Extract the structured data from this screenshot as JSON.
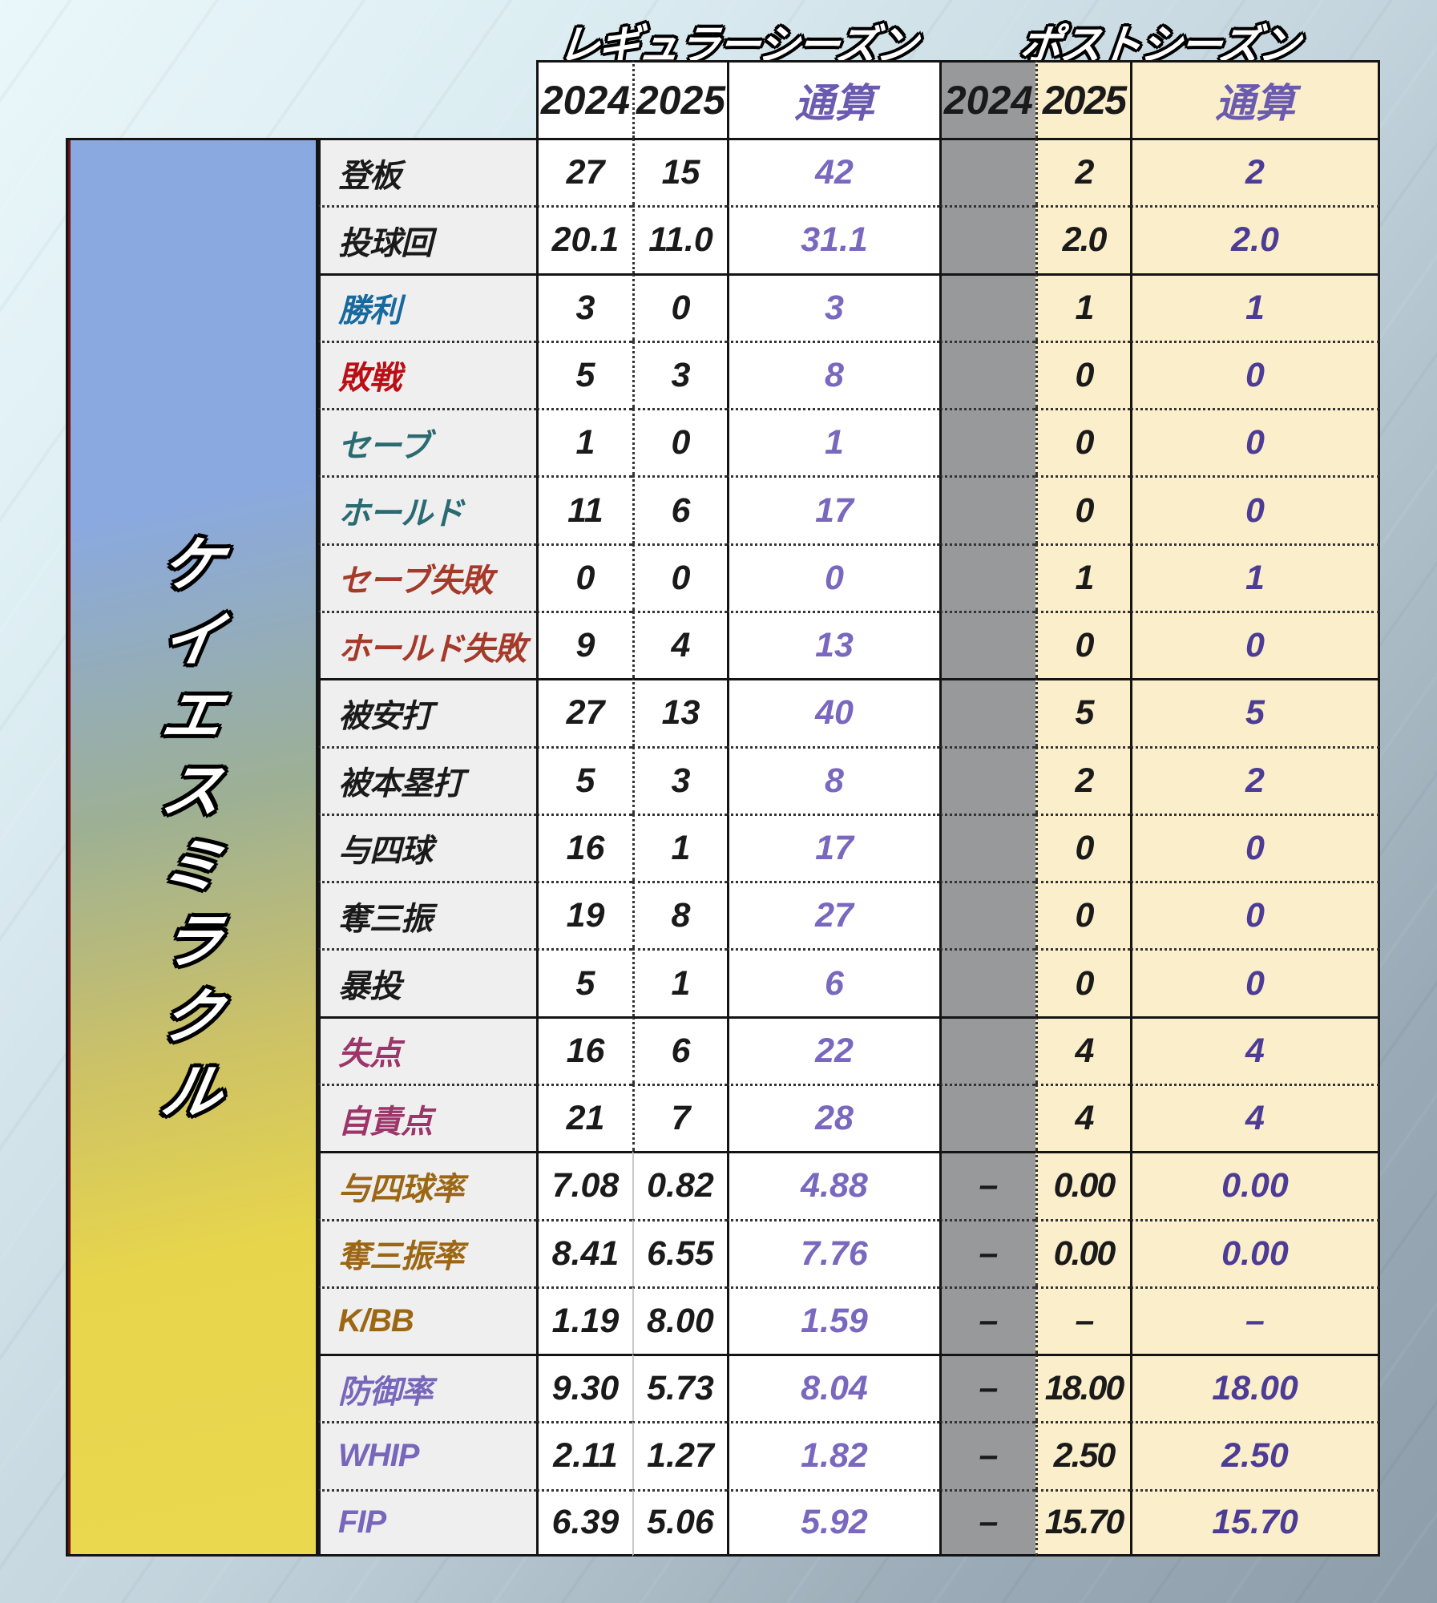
{
  "name_plate": {
    "name": "ケイエスミラクル"
  },
  "header": {
    "y2024": "2024",
    "y2025": "2025",
    "total": "通算"
  },
  "colors": {
    "regular_total_purple": "#7a68bf",
    "post_total_purple": "#4c3c96",
    "header_total_purple": "#6b5bb0",
    "cream_column": "#fbeecb",
    "gray_column": "#98999b",
    "label_column_bg": "#efefef",
    "plate_blue": "#8aa9e1",
    "plate_yellow": "#e9d74b",
    "label_blue": "#17699e",
    "label_red": "#bb0e15",
    "label_teal": "#2a6b72",
    "label_brick": "#a53a2a",
    "label_plum": "#9c3569",
    "label_brown": "#9c6714",
    "label_purple": "#7767bb"
  },
  "chart_data": {
    "type": "table",
    "sections": [
      {
        "name": "レギュラーシーズン",
        "columns": [
          "2024",
          "2025",
          "通算"
        ]
      },
      {
        "name": "ポストシーズン",
        "columns": [
          "2024",
          "2025",
          "通算"
        ]
      }
    ],
    "rows": [
      {
        "label": "登板",
        "color": "black",
        "group_start": false,
        "rate": false,
        "reg": [
          "27",
          "15",
          "42"
        ],
        "post": [
          "",
          "2",
          "2"
        ]
      },
      {
        "label": "投球回",
        "color": "black",
        "group_start": false,
        "rate": false,
        "reg": [
          "20.1",
          "11.0",
          "31.1"
        ],
        "post": [
          "",
          "2.0",
          "2.0"
        ]
      },
      {
        "label": "勝利",
        "color": "blue",
        "group_start": true,
        "rate": false,
        "reg": [
          "3",
          "0",
          "3"
        ],
        "post": [
          "",
          "1",
          "1"
        ]
      },
      {
        "label": "敗戦",
        "color": "red",
        "group_start": false,
        "rate": false,
        "reg": [
          "5",
          "3",
          "8"
        ],
        "post": [
          "",
          "0",
          "0"
        ]
      },
      {
        "label": "セーブ",
        "color": "teal",
        "group_start": false,
        "rate": false,
        "reg": [
          "1",
          "0",
          "1"
        ],
        "post": [
          "",
          "0",
          "0"
        ]
      },
      {
        "label": "ホールド",
        "color": "teal",
        "group_start": false,
        "rate": false,
        "reg": [
          "11",
          "6",
          "17"
        ],
        "post": [
          "",
          "0",
          "0"
        ]
      },
      {
        "label": "セーブ失敗",
        "color": "brick",
        "group_start": false,
        "rate": false,
        "reg": [
          "0",
          "0",
          "0"
        ],
        "post": [
          "",
          "1",
          "1"
        ]
      },
      {
        "label": "ホールド失敗",
        "color": "brick",
        "group_start": false,
        "rate": false,
        "reg": [
          "9",
          "4",
          "13"
        ],
        "post": [
          "",
          "0",
          "0"
        ]
      },
      {
        "label": "被安打",
        "color": "black",
        "group_start": true,
        "rate": false,
        "reg": [
          "27",
          "13",
          "40"
        ],
        "post": [
          "",
          "5",
          "5"
        ]
      },
      {
        "label": "被本塁打",
        "color": "black",
        "group_start": false,
        "rate": false,
        "reg": [
          "5",
          "3",
          "8"
        ],
        "post": [
          "",
          "2",
          "2"
        ]
      },
      {
        "label": "与四球",
        "color": "black",
        "group_start": false,
        "rate": false,
        "reg": [
          "16",
          "1",
          "17"
        ],
        "post": [
          "",
          "0",
          "0"
        ]
      },
      {
        "label": "奪三振",
        "color": "black",
        "group_start": false,
        "rate": false,
        "reg": [
          "19",
          "8",
          "27"
        ],
        "post": [
          "",
          "0",
          "0"
        ]
      },
      {
        "label": "暴投",
        "color": "black",
        "group_start": false,
        "rate": false,
        "reg": [
          "5",
          "1",
          "6"
        ],
        "post": [
          "",
          "0",
          "0"
        ]
      },
      {
        "label": "失点",
        "color": "plum",
        "group_start": true,
        "rate": false,
        "reg": [
          "16",
          "6",
          "22"
        ],
        "post": [
          "",
          "4",
          "4"
        ]
      },
      {
        "label": "自責点",
        "color": "plum",
        "group_start": false,
        "rate": false,
        "reg": [
          "21",
          "7",
          "28"
        ],
        "post": [
          "",
          "4",
          "4"
        ]
      },
      {
        "label": "与四球率",
        "color": "brown",
        "group_start": true,
        "rate": true,
        "reg": [
          "7.08",
          "0.82",
          "4.88"
        ],
        "post": [
          "–",
          "0.00",
          "0.00"
        ]
      },
      {
        "label": "奪三振率",
        "color": "brown",
        "group_start": false,
        "rate": true,
        "reg": [
          "8.41",
          "6.55",
          "7.76"
        ],
        "post": [
          "–",
          "0.00",
          "0.00"
        ]
      },
      {
        "label": "K/BB",
        "color": "brown",
        "group_start": false,
        "rate": true,
        "reg": [
          "1.19",
          "8.00",
          "1.59"
        ],
        "post": [
          "–",
          "–",
          "–"
        ]
      },
      {
        "label": "防御率",
        "color": "purple",
        "group_start": true,
        "rate": true,
        "reg": [
          "9.30",
          "5.73",
          "8.04"
        ],
        "post": [
          "–",
          "18.00",
          "18.00"
        ]
      },
      {
        "label": "WHIP",
        "color": "purple",
        "group_start": false,
        "rate": true,
        "reg": [
          "2.11",
          "1.27",
          "1.82"
        ],
        "post": [
          "–",
          "2.50",
          "2.50"
        ]
      },
      {
        "label": "FIP",
        "color": "purple",
        "group_start": false,
        "rate": true,
        "reg": [
          "6.39",
          "5.06",
          "5.92"
        ],
        "post": [
          "–",
          "15.70",
          "15.70"
        ]
      }
    ]
  }
}
